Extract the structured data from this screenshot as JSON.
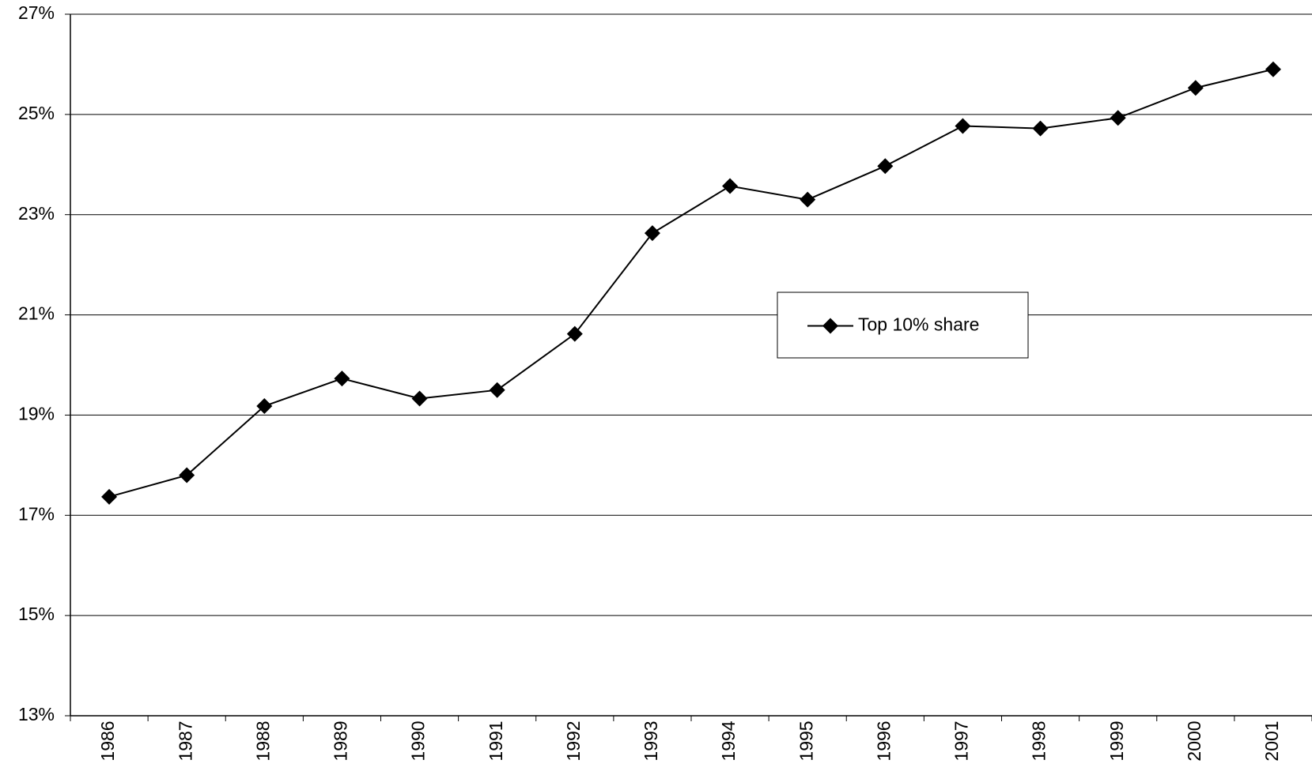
{
  "chart_data": {
    "type": "line",
    "categories": [
      "1986",
      "1987",
      "1988",
      "1989",
      "1990",
      "1991",
      "1992",
      "1993",
      "1994",
      "1995",
      "1996",
      "1997",
      "1998",
      "1999",
      "2000",
      "2001"
    ],
    "series": [
      {
        "name": "Top 10% share",
        "color": "#000000",
        "values": [
          17.37,
          17.8,
          19.18,
          19.73,
          19.33,
          19.5,
          20.62,
          22.63,
          23.57,
          23.3,
          23.97,
          24.77,
          24.72,
          24.93,
          25.53,
          25.9
        ]
      }
    ],
    "ylim": [
      13,
      27
    ],
    "yticks": [
      {
        "value": 13,
        "label": "13%"
      },
      {
        "value": 15,
        "label": "15%"
      },
      {
        "value": 17,
        "label": "17%"
      },
      {
        "value": 19,
        "label": "19%"
      },
      {
        "value": 21,
        "label": "21%"
      },
      {
        "value": 23,
        "label": "23%"
      },
      {
        "value": 25,
        "label": "25%"
      },
      {
        "value": 27,
        "label": "27%"
      }
    ],
    "grid": true
  }
}
